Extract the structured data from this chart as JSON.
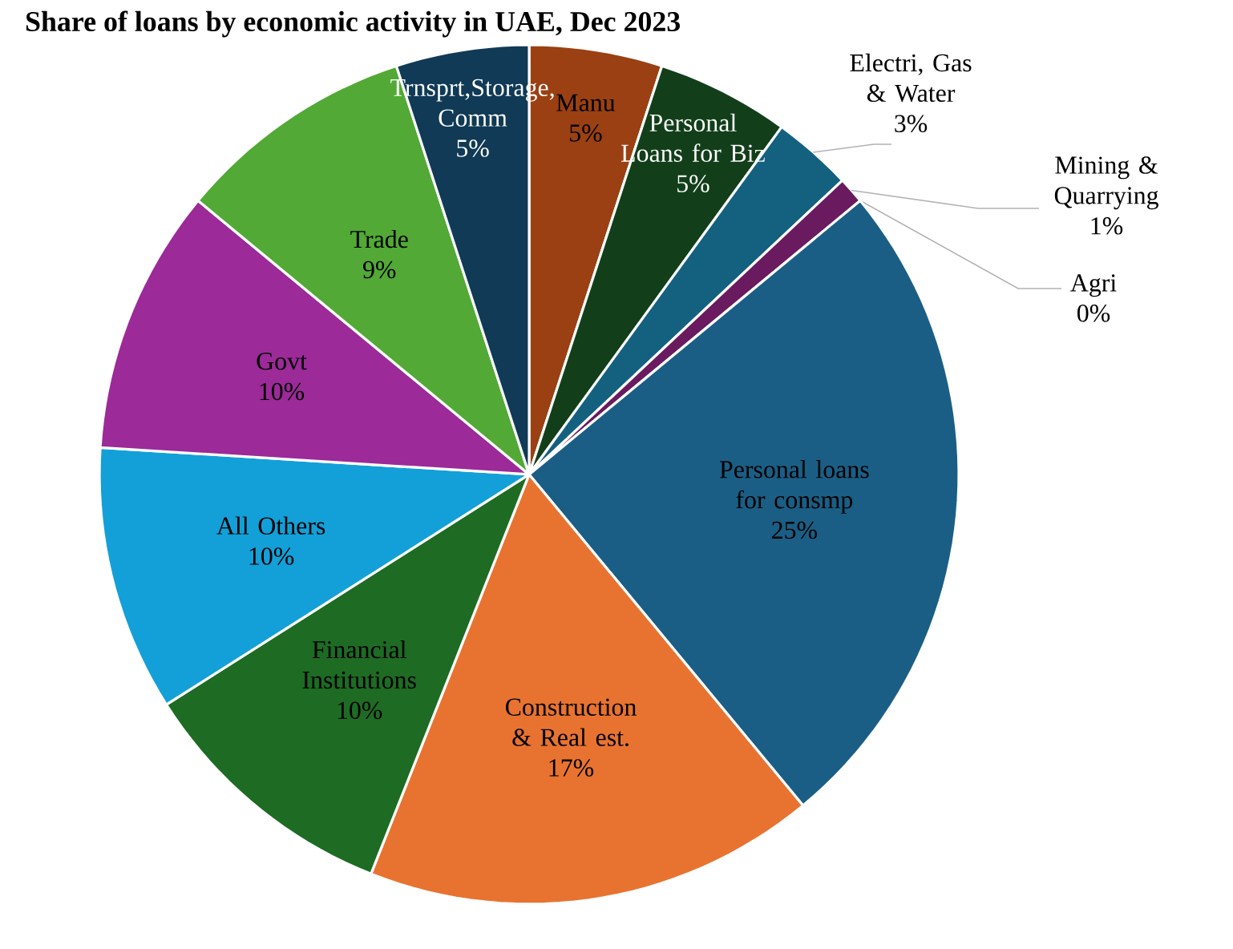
{
  "chart_data": {
    "type": "pie",
    "title": "Share of loans by economic activity in UAE, Dec 2023",
    "categories": [
      "Manu",
      "Personal Loans for Biz",
      "Electri, Gas & Water",
      "Mining & Quarrying",
      "Agri",
      "Personal loans for consmp",
      "Construction & Real est.",
      "Financial Institutions",
      "All Others",
      "Govt",
      "Trade",
      "Trnsprt,Storage, Comm"
    ],
    "values": [
      5,
      5,
      3,
      1,
      0,
      25,
      17,
      10,
      10,
      10,
      9,
      5
    ],
    "value_labels": [
      "5%",
      "5%",
      "3%",
      "1%",
      "0%",
      "25%",
      "17%",
      "10%",
      "10%",
      "10%",
      "9%",
      "5%"
    ],
    "colors": [
      "#9a4012",
      "#123f1a",
      "#14607f",
      "#6a1a5e",
      "#a5a5a5",
      "#1a5e85",
      "#e87330",
      "#1e6b24",
      "#13a0d8",
      "#9c2a98",
      "#52a935",
      "#103a55"
    ]
  }
}
